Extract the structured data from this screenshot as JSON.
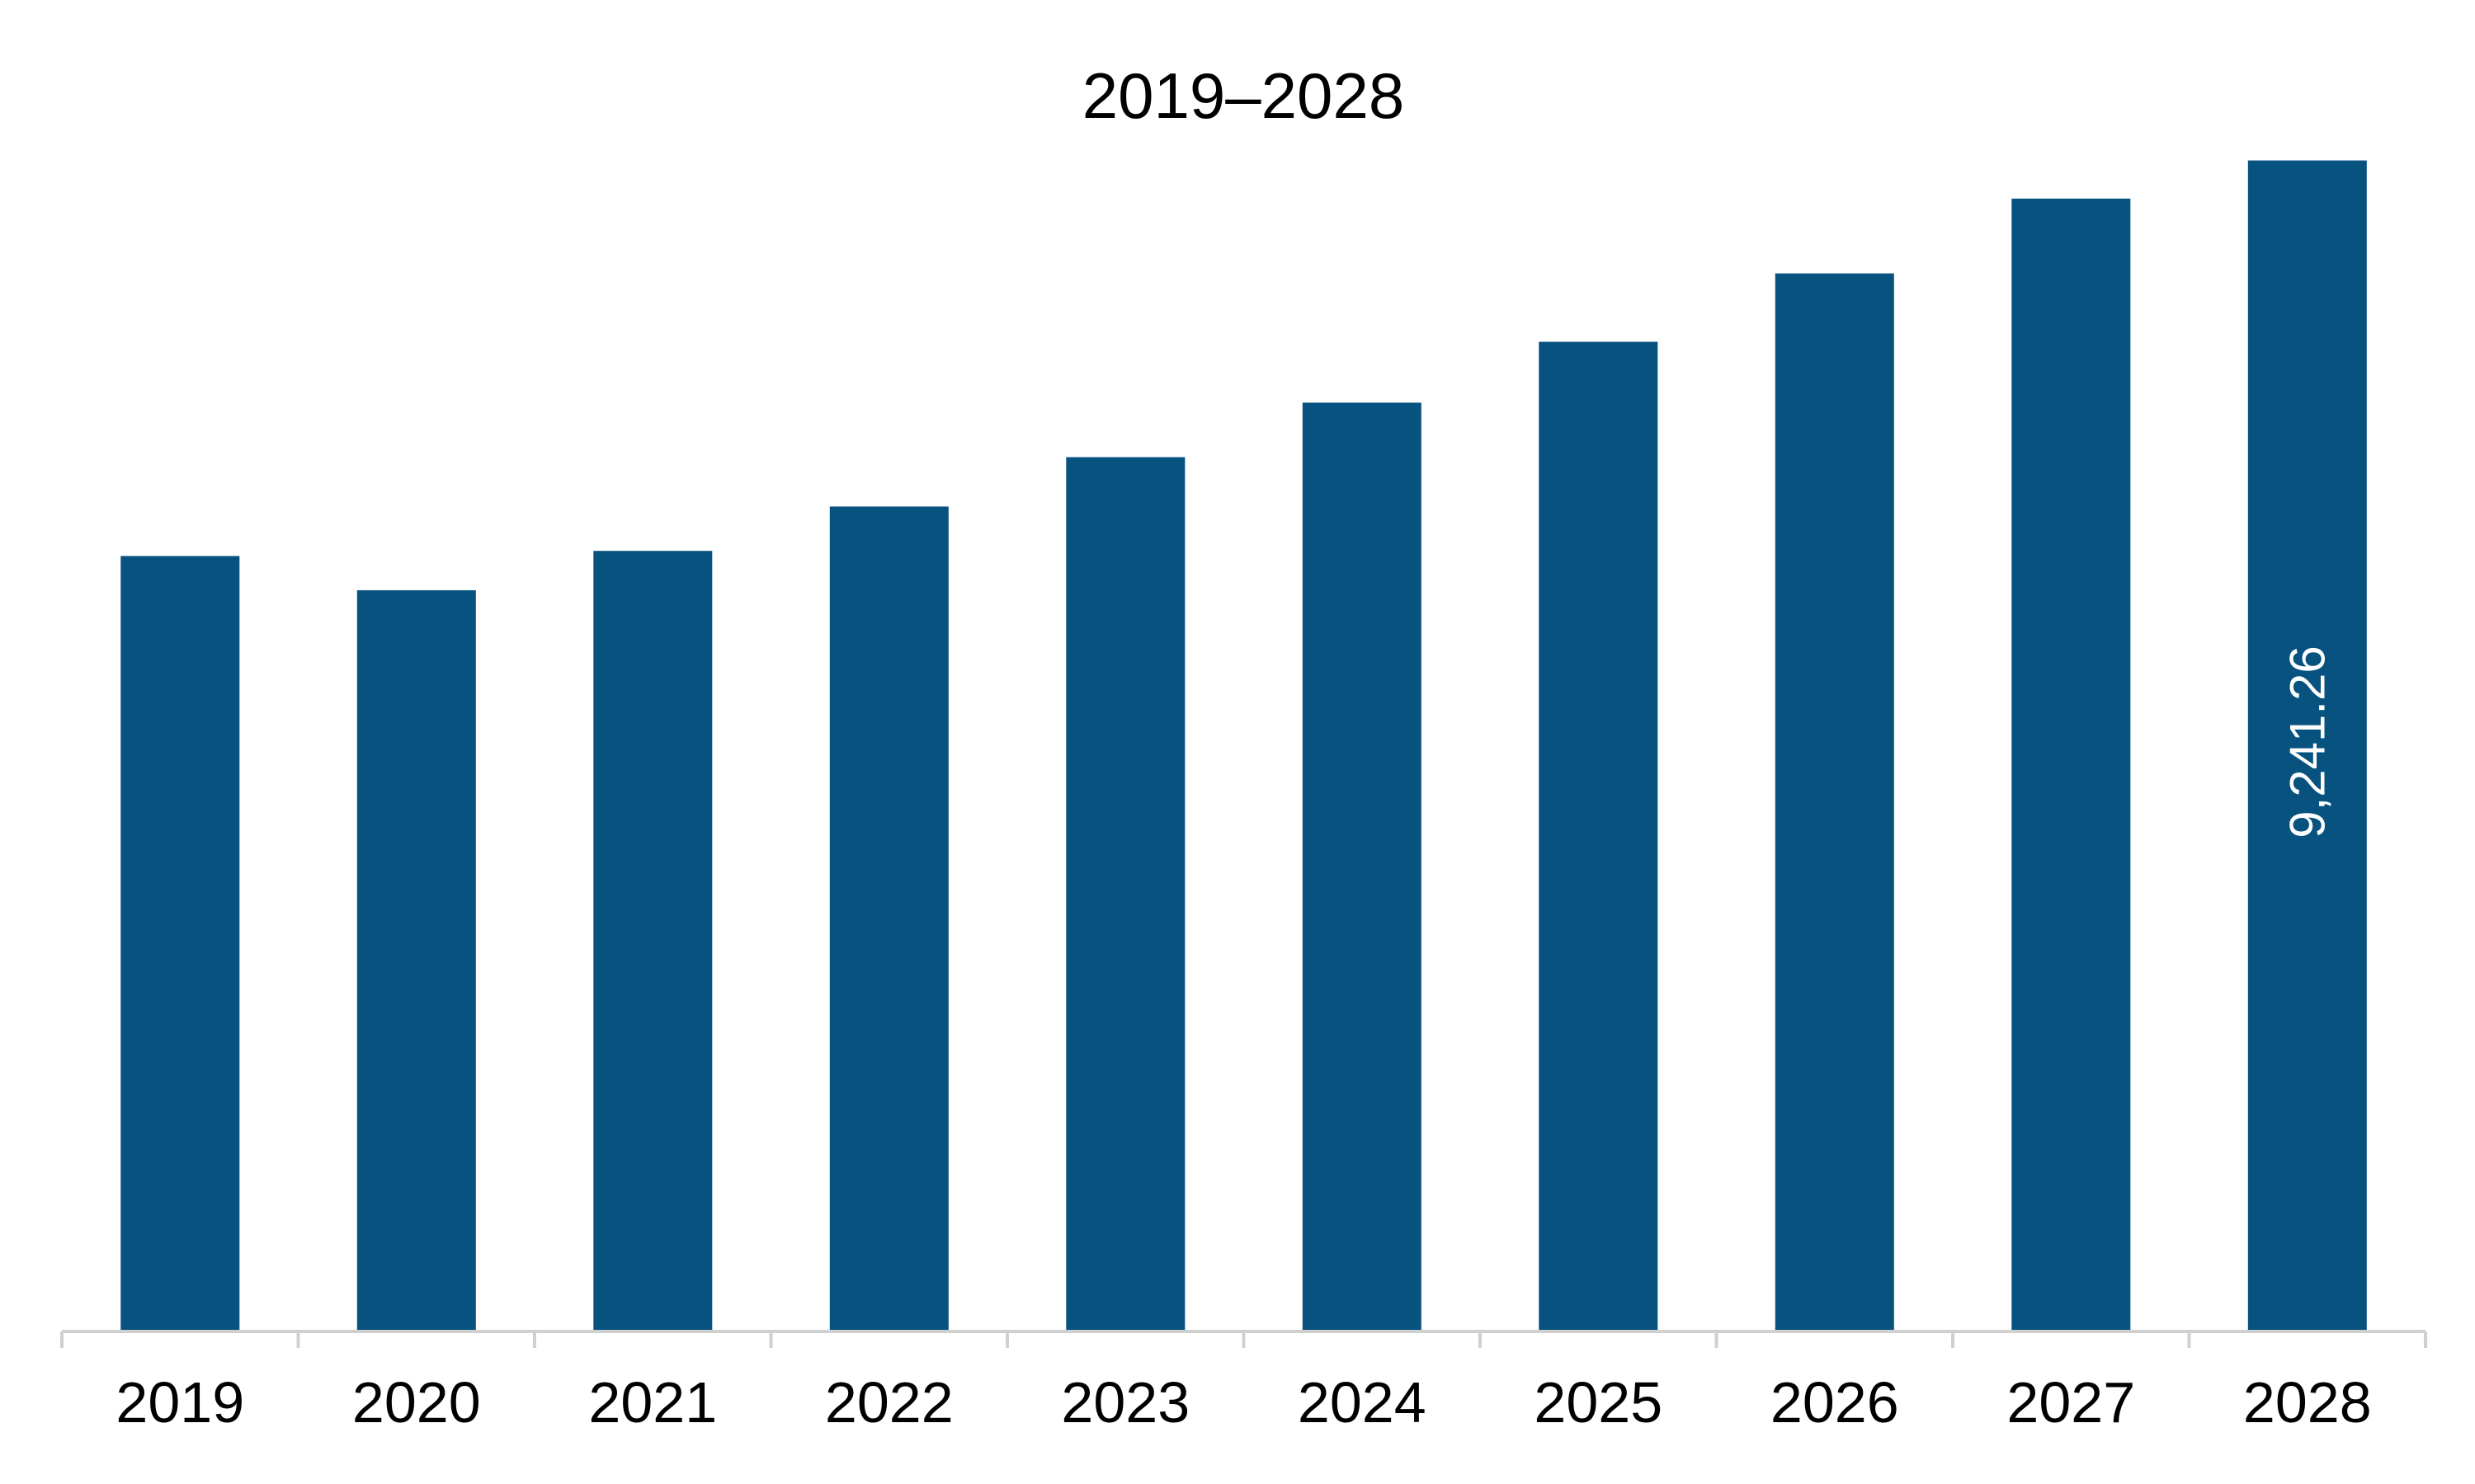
{
  "chart_data": {
    "type": "bar",
    "title": "2019–2028",
    "xlabel": "",
    "ylabel": "",
    "categories": [
      "2019",
      "2020",
      "2021",
      "2022",
      "2023",
      "2024",
      "2025",
      "2026",
      "2027",
      "2028"
    ],
    "values": [
      6120,
      5850,
      6160,
      6510,
      6900,
      7330,
      7810,
      8350,
      8940,
      9241.26
    ],
    "data_labels": [
      {
        "index": 9,
        "text": "9,241.26"
      }
    ],
    "ylim": [
      0,
      10000
    ],
    "grid": false,
    "legend": "none",
    "bar_color": "#07527f",
    "axis_color": "#d0d0d0"
  }
}
